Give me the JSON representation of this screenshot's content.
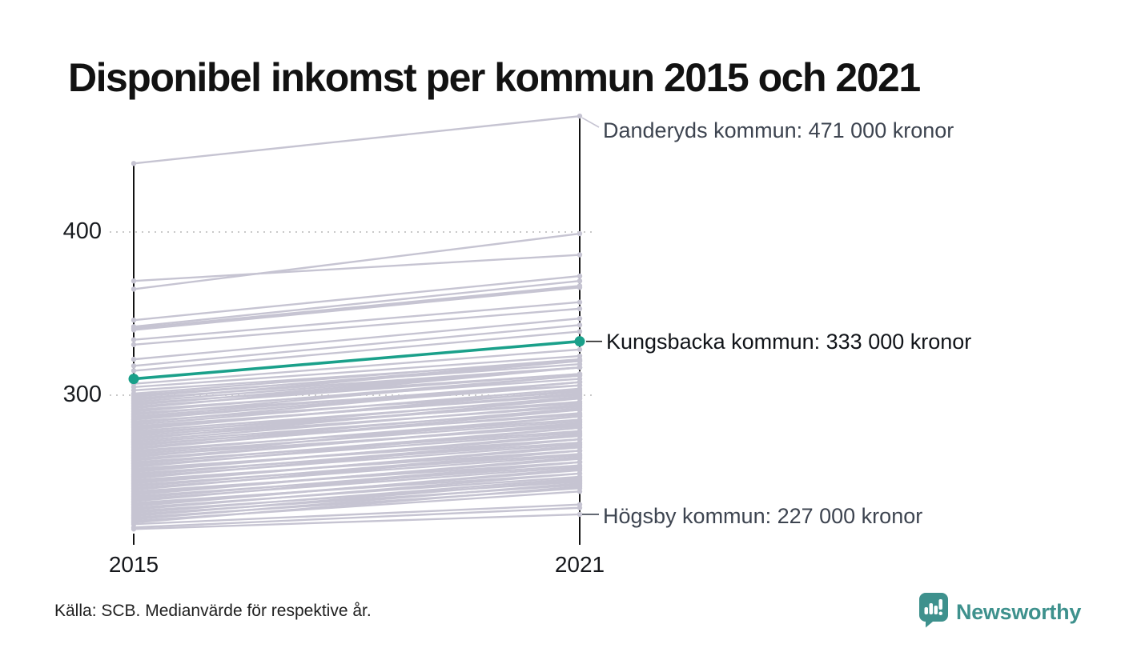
{
  "title": "Disponibel inkomst per kommun 2015 och 2021",
  "source": "Källa: SCB. Medianvärde för respektive år.",
  "branding": {
    "name": "Newsworthy",
    "color": "#3e918d"
  },
  "colors": {
    "highlight": "#1aa08a",
    "background_line": "#c6c4d2",
    "axis": "#121212",
    "grid": "#c9c9c9",
    "annotation_text": "#3d4450",
    "annotation_text_highlight": "#111419"
  },
  "chart_data": {
    "type": "line",
    "subtype": "slopegraph",
    "x": [
      2015,
      2021
    ],
    "x_labels": [
      "2015",
      "2021"
    ],
    "y_ticks": [
      400,
      300
    ],
    "y_tick_labels": [
      "400",
      "300"
    ],
    "grid": "dotted-horizontal",
    "unit_hint": "kronor (thousands on axis)",
    "highlight_series": {
      "name": "Kungsbacka kommun",
      "values": [
        310,
        333
      ]
    },
    "annotations": [
      {
        "municipality": "Danderyds kommun",
        "year": 2021,
        "value_label": "471 000 kronor",
        "value": 471,
        "text": "Danderyds kommun: 471 000 kronor"
      },
      {
        "municipality": "Kungsbacka kommun",
        "year": 2021,
        "value_label": "333 000 kronor",
        "value": 333,
        "text": "Kungsbacka kommun: 333 000 kronor"
      },
      {
        "municipality": "Högsby kommun",
        "year": 2021,
        "value_label": "227 000 kronor",
        "value": 227,
        "text": "Högsby kommun: 227 000 kronor"
      }
    ],
    "background_lines": [
      [
        442,
        471
      ],
      [
        365,
        399
      ],
      [
        370,
        386
      ],
      [
        346,
        373
      ],
      [
        342,
        370
      ],
      [
        341,
        367
      ],
      [
        340,
        366
      ],
      [
        334,
        357
      ],
      [
        331,
        353
      ],
      [
        322,
        347
      ],
      [
        318,
        343
      ],
      [
        315,
        339
      ],
      [
        307,
        328
      ],
      [
        305,
        324
      ],
      [
        303,
        321
      ],
      [
        301,
        322
      ],
      [
        300,
        319
      ],
      [
        299,
        321
      ],
      [
        298,
        317
      ],
      [
        297,
        321
      ],
      [
        296,
        317
      ],
      [
        295,
        313
      ],
      [
        294,
        317
      ],
      [
        293,
        313
      ],
      [
        292,
        317
      ],
      [
        291,
        310
      ],
      [
        290,
        312
      ],
      [
        289,
        306
      ],
      [
        288,
        312
      ],
      [
        287,
        308
      ],
      [
        286,
        306
      ],
      [
        285,
        308
      ],
      [
        284,
        302
      ],
      [
        283,
        308
      ],
      [
        282,
        304
      ],
      [
        281,
        300
      ],
      [
        280,
        301
      ],
      [
        279,
        303
      ],
      [
        278,
        298
      ],
      [
        277,
        295
      ],
      [
        276,
        299
      ],
      [
        275,
        296
      ],
      [
        274,
        293
      ],
      [
        273,
        298
      ],
      [
        272,
        294
      ],
      [
        271,
        291
      ],
      [
        270,
        288
      ],
      [
        269,
        292
      ],
      [
        268,
        289
      ],
      [
        267,
        291
      ],
      [
        266,
        285
      ],
      [
        265,
        287
      ],
      [
        264,
        284
      ],
      [
        263,
        281
      ],
      [
        262,
        287
      ],
      [
        261,
        282
      ],
      [
        260,
        283
      ],
      [
        259,
        278
      ],
      [
        258,
        280
      ],
      [
        257,
        277
      ],
      [
        256,
        280
      ],
      [
        255,
        273
      ],
      [
        254,
        275
      ],
      [
        253,
        276
      ],
      [
        252,
        271
      ],
      [
        251,
        273
      ],
      [
        250,
        270
      ],
      [
        249,
        273
      ],
      [
        248,
        266
      ],
      [
        247,
        268
      ],
      [
        246,
        269
      ],
      [
        245,
        264
      ],
      [
        244,
        266
      ],
      [
        243,
        263
      ],
      [
        242,
        266
      ],
      [
        241,
        259
      ],
      [
        240,
        261
      ],
      [
        239,
        262
      ],
      [
        238,
        257
      ],
      [
        237,
        259
      ],
      [
        236,
        256
      ],
      [
        235,
        259
      ],
      [
        234,
        252
      ],
      [
        233,
        254
      ],
      [
        232,
        255
      ],
      [
        231,
        250
      ],
      [
        230,
        252
      ],
      [
        229,
        247
      ],
      [
        228,
        249
      ],
      [
        227,
        245
      ],
      [
        226,
        248
      ],
      [
        225,
        243
      ],
      [
        224,
        246
      ],
      [
        223,
        241
      ],
      [
        222,
        244
      ],
      [
        221,
        233
      ],
      [
        219,
        231
      ],
      [
        218,
        227
      ]
    ],
    "ylim": [
      213,
      478
    ],
    "legend": "none"
  }
}
